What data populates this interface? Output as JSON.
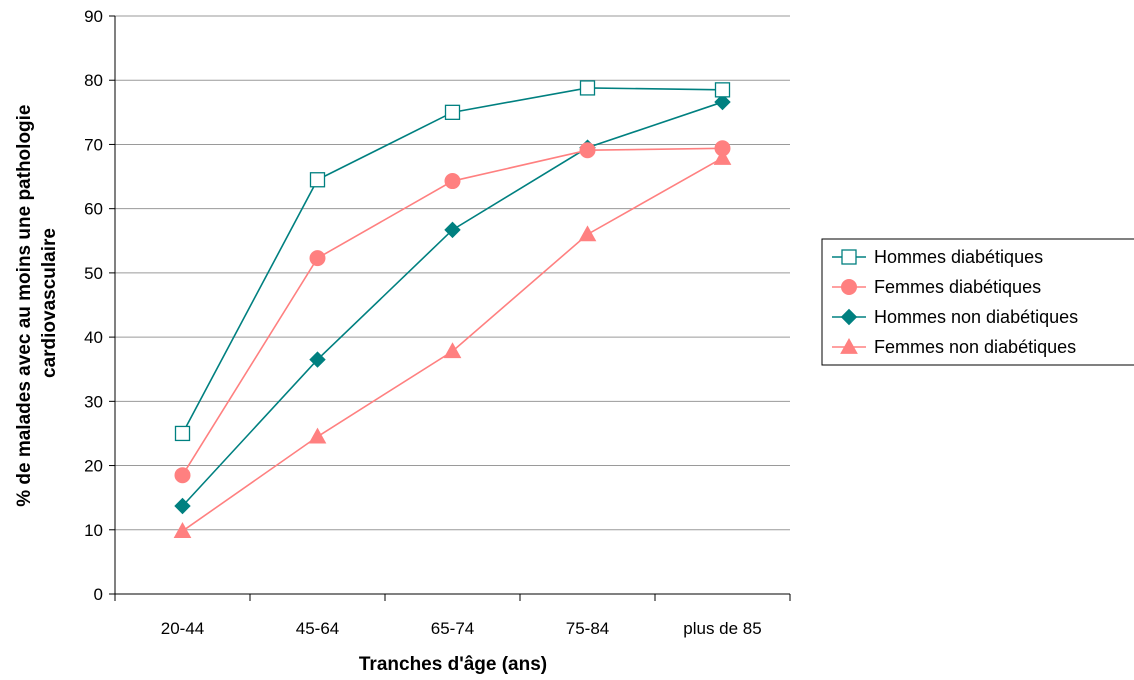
{
  "chart_data": {
    "type": "line",
    "title": "",
    "xlabel": "Tranches d'âge (ans)",
    "ylabel_lines": [
      "% de malades avec au moins une pathologie",
      "cardiovasculaire"
    ],
    "categories": [
      "20-44",
      "45-64",
      "65-74",
      "75-84",
      "plus de 85"
    ],
    "ylim": [
      0,
      90
    ],
    "yticks": [
      0,
      10,
      20,
      30,
      40,
      50,
      60,
      70,
      80,
      90
    ],
    "grid": true,
    "legend_position": "right",
    "series": [
      {
        "name": "Hommes diabétiques",
        "values": [
          25,
          64.5,
          75,
          78.8,
          78.5
        ],
        "color": "#008080",
        "marker": "square-open"
      },
      {
        "name": "Femmes diabétiques",
        "values": [
          18.5,
          52.3,
          64.3,
          69.1,
          69.4
        ],
        "color": "#ff8080",
        "marker": "circle"
      },
      {
        "name": "Hommes non diabétiques",
        "values": [
          13.7,
          36.5,
          56.7,
          69.5,
          76.6
        ],
        "color": "#008080",
        "marker": "diamond"
      },
      {
        "name": "Femmes non diabétiques",
        "values": [
          9.8,
          24.5,
          37.8,
          56,
          67.9
        ],
        "color": "#ff8080",
        "marker": "triangle"
      }
    ]
  }
}
